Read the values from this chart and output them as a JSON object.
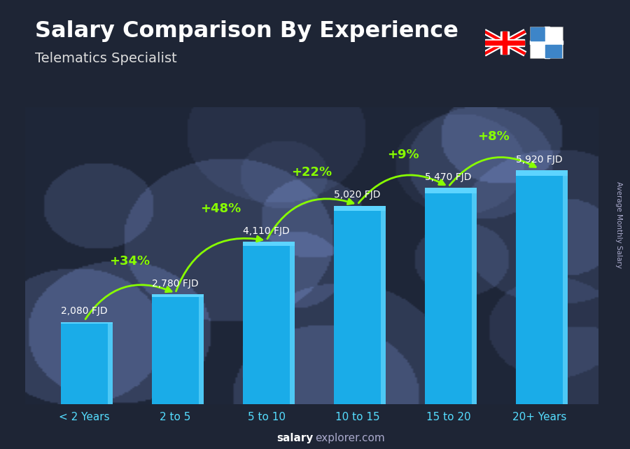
{
  "title": "Salary Comparison By Experience",
  "subtitle": "Telematics Specialist",
  "ylabel": "Average Monthly Salary",
  "categories": [
    "< 2 Years",
    "2 to 5",
    "5 to 10",
    "10 to 15",
    "15 to 20",
    "20+ Years"
  ],
  "values": [
    2080,
    2780,
    4110,
    5020,
    5470,
    5920
  ],
  "value_labels": [
    "2,080 FJD",
    "2,780 FJD",
    "4,110 FJD",
    "5,020 FJD",
    "5,470 FJD",
    "5,920 FJD"
  ],
  "pct_labels": [
    "+34%",
    "+48%",
    "+22%",
    "+9%",
    "+8%"
  ],
  "bar_color_main": "#1AACE8",
  "bar_color_right": "#4DC8F5",
  "bar_color_top": "#5DD4FF",
  "pct_color": "#88FF00",
  "value_label_color": "#FFFFFF",
  "title_color": "#FFFFFF",
  "subtitle_color": "#DDDDDD",
  "xtick_color": "#55DDFF",
  "bg_dark": "#1C2535",
  "watermark_bold_color": "#FFFFFF",
  "watermark_normal_color": "#AAAACC",
  "ylabel_color": "#AAAACC",
  "figsize": [
    9.0,
    6.41
  ],
  "dpi": 100
}
